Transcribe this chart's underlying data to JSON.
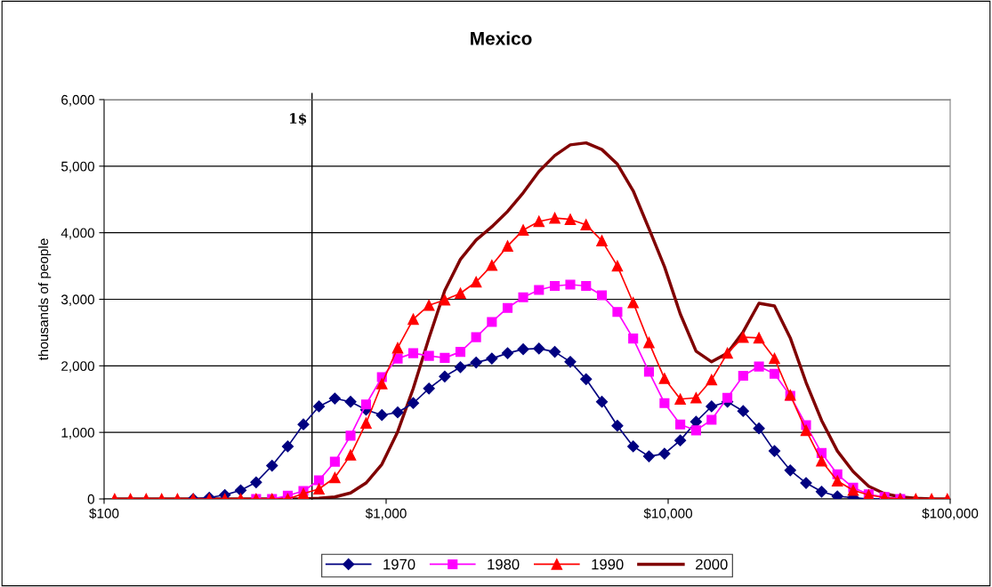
{
  "chart_data": {
    "type": "line",
    "title": "Mexico",
    "ylabel": "thousands of people",
    "x": [
      109,
      124,
      141,
      160,
      182,
      207,
      236,
      268,
      305,
      346,
      394,
      448,
      509,
      578,
      658,
      748,
      849,
      966,
      1099,
      1248,
      1419,
      1614,
      1834,
      2085,
      2371,
      2696,
      3062,
      3483,
      3963,
      4498,
      5117,
      5821,
      6607,
      7516,
      8551,
      9705,
      11040,
      12560,
      14256,
      16218,
      18450,
      20989,
      23823,
      27102,
      30832,
      34995,
      39811,
      45290,
      51404,
      58479,
      66527,
      75509,
      85901,
      97724
    ],
    "series": [
      {
        "name": "1970",
        "color": "#000080",
        "marker": "diamond",
        "values": [
          null,
          null,
          null,
          null,
          null,
          0,
          20,
          60,
          130,
          250,
          500,
          790,
          1120,
          1390,
          1510,
          1460,
          1340,
          1260,
          1300,
          1440,
          1660,
          1840,
          1980,
          2050,
          2110,
          2190,
          2250,
          2260,
          2210,
          2060,
          1800,
          1460,
          1100,
          790,
          640,
          680,
          880,
          1160,
          1390,
          1460,
          1320,
          1060,
          720,
          430,
          240,
          110,
          40,
          20,
          0,
          0,
          0,
          null,
          null,
          null
        ]
      },
      {
        "name": "1980",
        "color": "#ff00ff",
        "marker": "square",
        "values": [
          null,
          null,
          null,
          null,
          null,
          null,
          null,
          null,
          null,
          0,
          0,
          50,
          120,
          280,
          560,
          950,
          1420,
          1830,
          2110,
          2190,
          2150,
          2120,
          2210,
          2430,
          2660,
          2870,
          3030,
          3140,
          3200,
          3220,
          3200,
          3060,
          2810,
          2410,
          1910,
          1440,
          1120,
          1030,
          1190,
          1520,
          1850,
          1990,
          1880,
          1550,
          1110,
          690,
          370,
          170,
          70,
          30,
          0,
          null,
          null,
          null
        ]
      },
      {
        "name": "1990",
        "color": "#ff0000",
        "marker": "triangle",
        "values": [
          0,
          0,
          0,
          0,
          0,
          0,
          0,
          0,
          0,
          0,
          0,
          0,
          80,
          150,
          320,
          660,
          1140,
          1730,
          2270,
          2700,
          2910,
          2990,
          3090,
          3260,
          3510,
          3800,
          4040,
          4170,
          4220,
          4200,
          4120,
          3880,
          3500,
          2950,
          2350,
          1810,
          1500,
          1520,
          1790,
          2190,
          2430,
          2420,
          2110,
          1560,
          1030,
          570,
          270,
          130,
          60,
          20,
          0,
          0,
          0,
          0
        ]
      },
      {
        "name": "2000",
        "color": "#800000",
        "marker": "none",
        "values": [
          0,
          0,
          0,
          0,
          0,
          0,
          0,
          0,
          0,
          0,
          0,
          0,
          0,
          10,
          30,
          90,
          240,
          520,
          1010,
          1660,
          2420,
          3130,
          3600,
          3890,
          4090,
          4320,
          4600,
          4920,
          5160,
          5320,
          5350,
          5250,
          5030,
          4630,
          4060,
          3490,
          2780,
          2220,
          2060,
          2190,
          2510,
          2940,
          2900,
          2420,
          1750,
          1180,
          720,
          410,
          190,
          80,
          30,
          10,
          0,
          0
        ]
      }
    ],
    "log": "x",
    "xlim": [
      100,
      100000
    ],
    "xticks": [
      {
        "value": 100,
        "label": "$100"
      },
      {
        "value": 1000,
        "label": "$1,000"
      },
      {
        "value": 10000,
        "label": "$10,000"
      },
      {
        "value": 100000,
        "label": "$100,000"
      }
    ],
    "ylim": [
      0,
      6000
    ],
    "yticks": [
      0,
      {
        "value": 1000,
        "label": "1,000"
      },
      {
        "value": 2000,
        "label": "2,000"
      },
      {
        "value": 3000,
        "label": "3,000"
      },
      {
        "value": 4000,
        "label": "4,000"
      },
      {
        "value": 5000,
        "label": "5,000"
      },
      {
        "value": 6000,
        "label": "6,000"
      }
    ],
    "ref_lines": [
      {
        "axis": "x",
        "value": 546,
        "color": "#000000"
      }
    ],
    "annotations": [
      "1$"
    ],
    "grid": "y",
    "legend": "bottom"
  }
}
